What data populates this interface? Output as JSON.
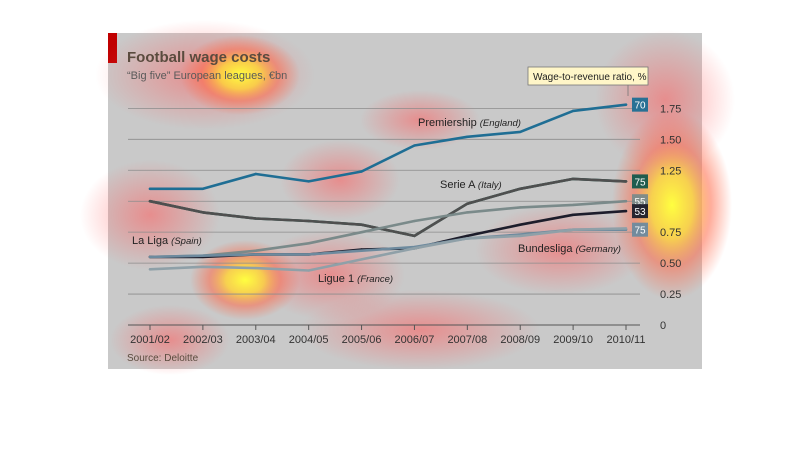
{
  "chart_data": {
    "type": "line",
    "title": "Football wage costs",
    "subtitle": "“Big five” European leagues, €bn",
    "source": "Source: Deloitte",
    "ratio_label": "Wage-to-revenue ratio, %",
    "x": [
      "2001/02",
      "2002/03",
      "2003/04",
      "2004/05",
      "2005/06",
      "2006/07",
      "2007/08",
      "2008/09",
      "2009/10",
      "2010/11"
    ],
    "ylim": [
      0,
      1.85
    ],
    "yticks": [
      0,
      0.25,
      0.5,
      0.75,
      1.0,
      1.25,
      1.5,
      1.75
    ],
    "ytick_labels": [
      "0",
      "0.25",
      "0.50",
      "0.75",
      "",
      "1.25",
      "1.50",
      "1.75"
    ],
    "grid": true,
    "series": [
      {
        "name": "Premiership",
        "country": "(England)",
        "color": "#1f6e94",
        "ratio": "70",
        "values": [
          1.1,
          1.1,
          1.22,
          1.16,
          1.24,
          1.45,
          1.52,
          1.56,
          1.73,
          1.78
        ]
      },
      {
        "name": "Serie A",
        "country": "(Italy)",
        "color": "#14594c",
        "ratio": "75",
        "values": [
          1.0,
          0.91,
          0.86,
          0.84,
          0.81,
          0.72,
          0.98,
          1.1,
          1.18,
          1.16
        ]
      },
      {
        "name": "La Liga",
        "country": "(Spain)",
        "color": "#4f4f4f",
        "ratio": "",
        "values": [
          1.0,
          0.91,
          0.86,
          0.84,
          0.81,
          0.72,
          0.98,
          1.1,
          1.18,
          1.16
        ]
      },
      {
        "name": "",
        "country": "",
        "color": "#7a8a8a",
        "ratio": "55",
        "values": [
          0.55,
          0.56,
          0.6,
          0.66,
          0.75,
          0.84,
          0.91,
          0.95,
          0.97,
          1.0
        ]
      },
      {
        "name": "",
        "country": "",
        "color": "#1d1d2b",
        "ratio": "53",
        "values": [
          0.55,
          0.55,
          0.57,
          0.57,
          0.61,
          0.62,
          0.72,
          0.81,
          0.89,
          0.92
        ]
      },
      {
        "name": "Bundesliga",
        "country": "(Germany)",
        "color": "#6d8a9e",
        "ratio": "75",
        "values": [
          0.55,
          0.56,
          0.57,
          0.57,
          0.6,
          0.63,
          0.7,
          0.73,
          0.77,
          0.77
        ]
      },
      {
        "name": "Ligue 1",
        "country": "(France)",
        "color": "#8fa0a8",
        "ratio": "",
        "values": [
          0.45,
          0.47,
          0.46,
          0.44,
          0.53,
          0.62,
          0.7,
          0.72,
          0.77,
          0.78
        ]
      }
    ]
  }
}
